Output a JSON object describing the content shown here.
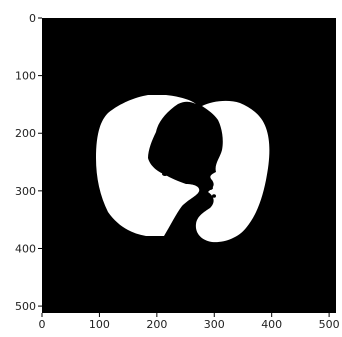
{
  "image": {
    "subject": "binary lung segmentation mask",
    "background_color": "#000000",
    "mask_color": "#ffffff"
  },
  "axes": {
    "x_range": [
      0,
      512
    ],
    "y_range": [
      0,
      512
    ],
    "y_inverted": true,
    "x_ticks": [
      "0",
      "100",
      "200",
      "300",
      "400",
      "500"
    ],
    "y_ticks": [
      "0",
      "100",
      "200",
      "300",
      "400",
      "500"
    ],
    "grid": false,
    "tick_color": "#000000"
  }
}
